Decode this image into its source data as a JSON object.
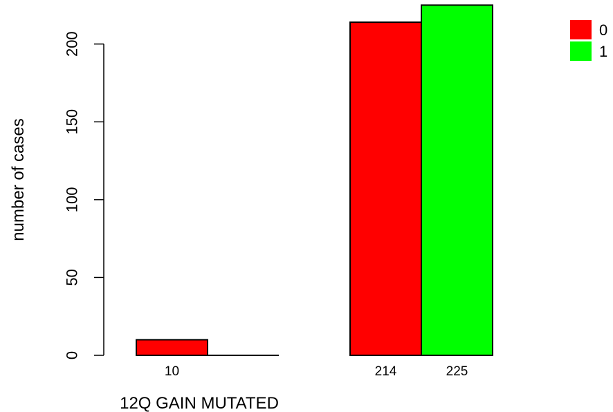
{
  "chart_data": {
    "type": "bar",
    "title": "",
    "xlabel": "12Q GAIN MUTATED",
    "ylabel": "number of cases",
    "ylim": [
      0,
      225
    ],
    "yticks": [
      0,
      50,
      100,
      150,
      200
    ],
    "grid": false,
    "legend_position": "top-right",
    "groups": [
      {
        "bars": [
          {
            "series": "0",
            "value": 10,
            "label": "10"
          },
          {
            "series": "1",
            "value": 0,
            "label": ""
          }
        ]
      },
      {
        "bars": [
          {
            "series": "0",
            "value": 214,
            "label": "214"
          },
          {
            "series": "1",
            "value": 225,
            "label": "225"
          }
        ]
      }
    ],
    "series": [
      {
        "name": "0",
        "color": "#ff0000"
      },
      {
        "name": "1",
        "color": "#00ff00"
      }
    ]
  }
}
